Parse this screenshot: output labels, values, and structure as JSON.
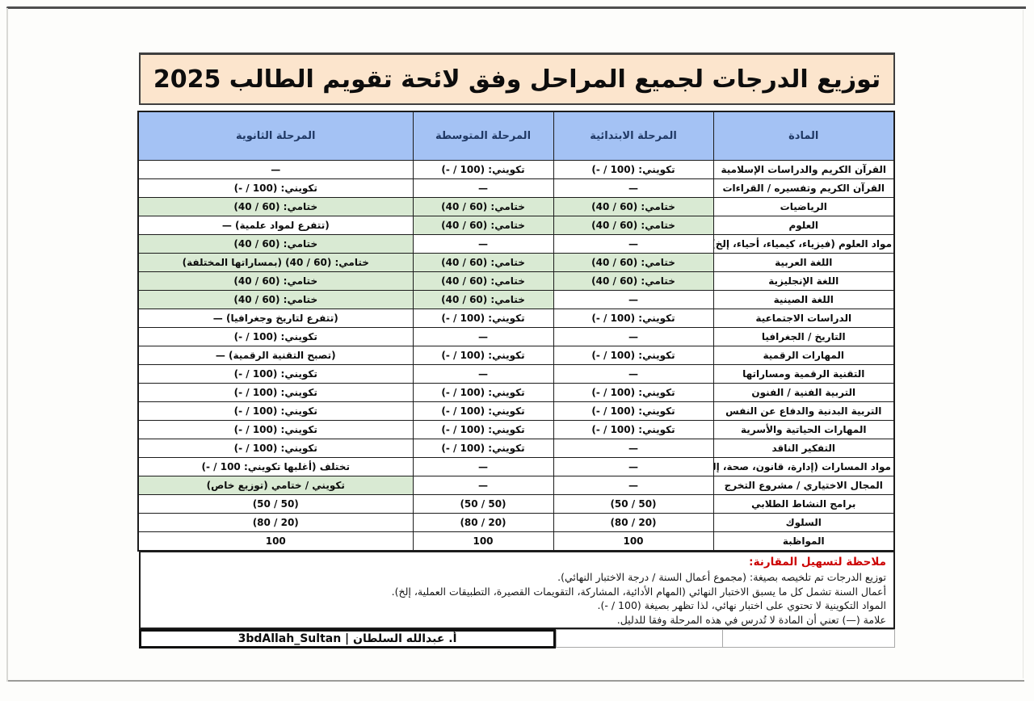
{
  "page": {
    "title": "توزيع الدرجات لجميع المراحل وفق لائحة تقويم الطالب 2025"
  },
  "colors": {
    "title_band": "#fce5cd",
    "header_band": "#a4c2f4",
    "header_text": "#1f3864",
    "highlight_green": "#d9ead3",
    "note_heading_red": "#cc0000"
  },
  "table": {
    "headers": {
      "subject": "المادة",
      "primary": "المرحلة الابتدائية",
      "middle": "المرحلة المتوسطة",
      "secondary": "المرحلة الثانوية"
    },
    "rows": [
      {
        "subject": "القرآن الكريم والدراسات الإسلامية",
        "primary": {
          "text": "تكويني: (100 / -)",
          "green": false
        },
        "middle": {
          "text": "تكويني: (100 / -)",
          "green": false
        },
        "secondary": {
          "text": "—",
          "green": false
        }
      },
      {
        "subject": "القرآن الكريم وتفسيره / القراءات",
        "primary": {
          "text": "—",
          "green": false
        },
        "middle": {
          "text": "—",
          "green": false
        },
        "secondary": {
          "text": "تكويني: (100 / -)",
          "green": false
        }
      },
      {
        "subject": "الرياضيات",
        "primary": {
          "text": "ختامي: (60 / 40)",
          "green": true
        },
        "middle": {
          "text": "ختامي: (60 / 40)",
          "green": true
        },
        "secondary": {
          "text": "ختامي: (60 / 40)",
          "green": true
        }
      },
      {
        "subject": "العلوم",
        "primary": {
          "text": "ختامي: (60 / 40)",
          "green": true
        },
        "middle": {
          "text": "ختامي: (60 / 40)",
          "green": true
        },
        "secondary": {
          "text": "(تتفرع لمواد علمية) —",
          "green": false
        }
      },
      {
        "subject": "مواد العلوم (فيزياء، كيمياء، أحياء، إلخ)",
        "primary": {
          "text": "—",
          "green": false
        },
        "middle": {
          "text": "—",
          "green": false
        },
        "secondary": {
          "text": "ختامي: (60 / 40)",
          "green": true
        }
      },
      {
        "subject": "اللغة العربية",
        "primary": {
          "text": "ختامي: (60 / 40)",
          "green": true
        },
        "middle": {
          "text": "ختامي: (60 / 40)",
          "green": true
        },
        "secondary": {
          "text": "ختامي: (60 / 40) (بمساراتها المختلفة)",
          "green": true
        }
      },
      {
        "subject": "اللغة الإنجليزية",
        "primary": {
          "text": "ختامي: (60 / 40)",
          "green": true
        },
        "middle": {
          "text": "ختامي: (60 / 40)",
          "green": true
        },
        "secondary": {
          "text": "ختامي: (60 / 40)",
          "green": true
        }
      },
      {
        "subject": "اللغة الصينية",
        "primary": {
          "text": "—",
          "green": false
        },
        "middle": {
          "text": "ختامي: (60 / 40)",
          "green": true
        },
        "secondary": {
          "text": "ختامي: (60 / 40)",
          "green": true
        }
      },
      {
        "subject": "الدراسات الاجتماعية",
        "primary": {
          "text": "تكويني: (100 / -)",
          "green": false
        },
        "middle": {
          "text": "تكويني: (100 / -)",
          "green": false
        },
        "secondary": {
          "text": "(تتفرع لتاريخ وجغرافيا) —",
          "green": false
        }
      },
      {
        "subject": "التاريخ / الجغرافيا",
        "primary": {
          "text": "—",
          "green": false
        },
        "middle": {
          "text": "—",
          "green": false
        },
        "secondary": {
          "text": "تكويني: (100 / -)",
          "green": false
        }
      },
      {
        "subject": "المهارات الرقمية",
        "primary": {
          "text": "تكويني: (100 / -)",
          "green": false
        },
        "middle": {
          "text": "تكويني: (100 / -)",
          "green": false
        },
        "secondary": {
          "text": "(تصبح التقنية الرقمية) —",
          "green": false
        }
      },
      {
        "subject": "التقنية الرقمية ومساراتها",
        "primary": {
          "text": "—",
          "green": false
        },
        "middle": {
          "text": "—",
          "green": false
        },
        "secondary": {
          "text": "تكويني: (100 / -)",
          "green": false
        }
      },
      {
        "subject": "التربية الفنية / الفنون",
        "primary": {
          "text": "تكويني: (100 / -)",
          "green": false
        },
        "middle": {
          "text": "تكويني: (100 / -)",
          "green": false
        },
        "secondary": {
          "text": "تكويني: (100 / -)",
          "green": false
        }
      },
      {
        "subject": "التربية البدنية والدفاع عن النفس",
        "primary": {
          "text": "تكويني: (100 / -)",
          "green": false
        },
        "middle": {
          "text": "تكويني: (100 / -)",
          "green": false
        },
        "secondary": {
          "text": "تكويني: (100 / -)",
          "green": false
        }
      },
      {
        "subject": "المهارات الحياتية والأسرية",
        "primary": {
          "text": "تكويني: (100 / -)",
          "green": false
        },
        "middle": {
          "text": "تكويني: (100 / -)",
          "green": false
        },
        "secondary": {
          "text": "تكويني: (100 / -)",
          "green": false
        }
      },
      {
        "subject": "التفكير الناقد",
        "primary": {
          "text": "—",
          "green": false
        },
        "middle": {
          "text": "تكويني: (100 / -)",
          "green": false
        },
        "secondary": {
          "text": "تكويني: (100 / -)",
          "green": false
        }
      },
      {
        "subject": "مواد المسارات (إدارة، قانون، صحة، إلخ)",
        "primary": {
          "text": "—",
          "green": false
        },
        "middle": {
          "text": "—",
          "green": false
        },
        "secondary": {
          "text": "تختلف (أغلبها تكويني: 100 / -)",
          "green": false
        }
      },
      {
        "subject": "المجال الاختياري / مشروع التخرج",
        "primary": {
          "text": "—",
          "green": false
        },
        "middle": {
          "text": "—",
          "green": false
        },
        "secondary": {
          "text": "تكويني / ختامي (توزيع خاص)",
          "green": true
        }
      },
      {
        "subject": "برامج النشاط الطلابي",
        "primary": {
          "text": "(50 / 50)",
          "green": false
        },
        "middle": {
          "text": "(50 / 50)",
          "green": false
        },
        "secondary": {
          "text": "(50 / 50)",
          "green": false
        }
      },
      {
        "subject": "السلوك",
        "primary": {
          "text": "(80 / 20)",
          "green": false
        },
        "middle": {
          "text": "(80 / 20)",
          "green": false
        },
        "secondary": {
          "text": "(80 / 20)",
          "green": false
        }
      },
      {
        "subject": "المواظبة",
        "primary": {
          "text": "100",
          "green": false
        },
        "middle": {
          "text": "100",
          "green": false
        },
        "secondary": {
          "text": "100",
          "green": false
        }
      }
    ]
  },
  "notes": {
    "heading": "ملاحظة لتسهيل المقارنة:",
    "lines": [
      "توزيع الدرجات تم تلخيصه بصيغة: (مجموع أعمال السنة / درجة الاختبار النهائي).",
      "أعمال السنة تشمل كل ما يسبق الاختبار النهائي (المهام الأدائية، المشاركة، التقويمات القصيرة، التطبيقات العملية، إلخ).",
      "المواد التكوينية لا تحتوي على اختبار نهائي، لذا تظهر بصيغة (100 / -).",
      "علامة (—) تعني أن المادة لا تُدرس في هذه المرحلة وفقا للدليل."
    ]
  },
  "footer": {
    "signature": "أ. عبدالله السلطان | 3bdAllah_Sultan"
  }
}
